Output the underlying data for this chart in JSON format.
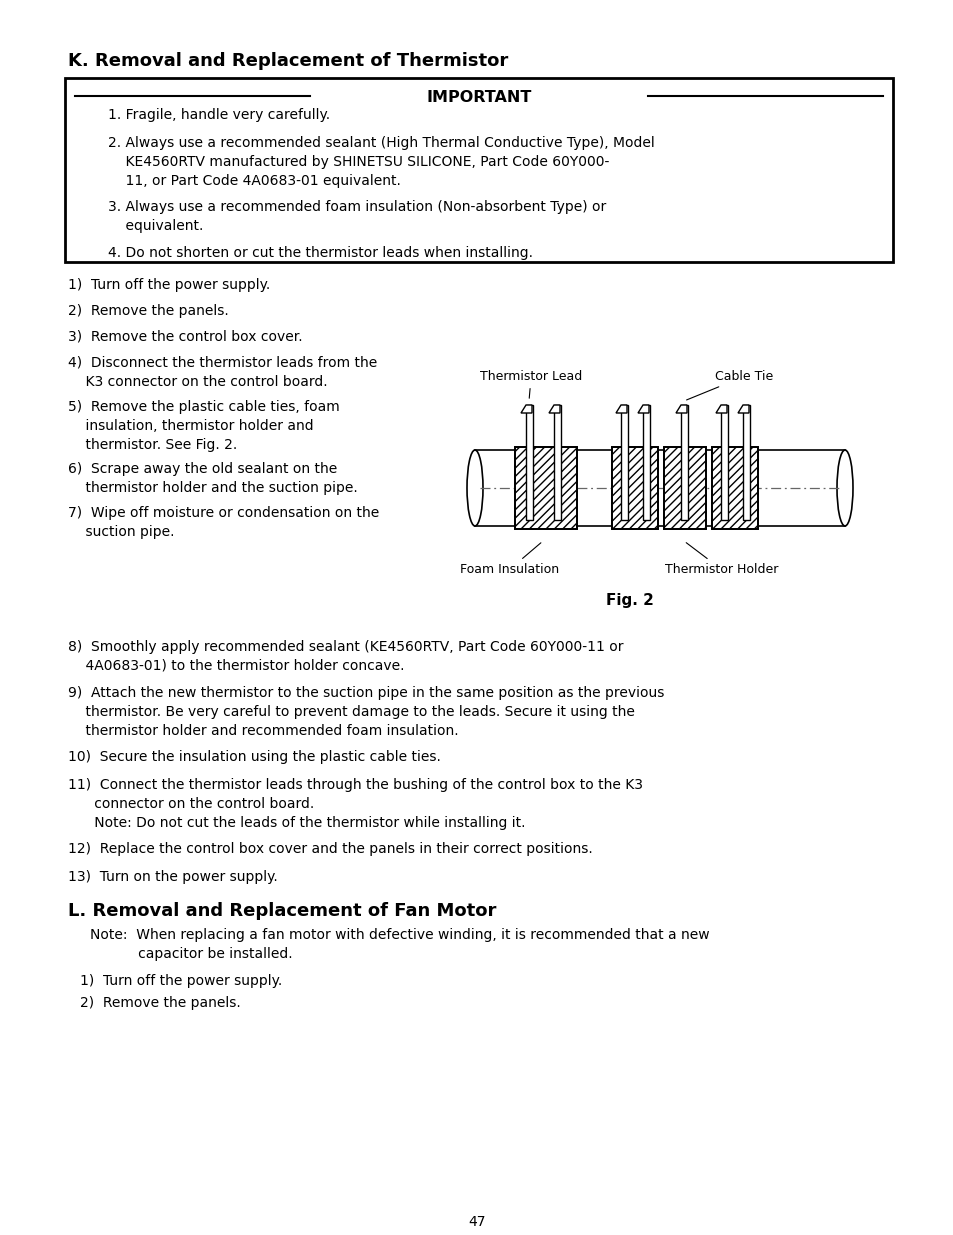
{
  "title_k": "K. Removal and Replacement of Thermistor",
  "important_title": "IMPORTANT",
  "important_items": [
    "1.  Fragile, handle very carefully.",
    "2.  Always use a recommended sealant (High Thermal Conductive Type), Model\n    KE4560RTV manufactured by SHINETSU SILICONE, Part Code 60Y000-\n    11, or Part Code 4A0683-01 equivalent.",
    "3.  Always use a recommended foam insulation (Non-absorbent Type) or\n    equivalent.",
    "4.  Do not shorten or cut the thermistor leads when installing."
  ],
  "steps_left": [
    "1)  Turn off the power supply.",
    "2)  Remove the panels.",
    "3)  Remove the control box cover.",
    "4)  Disconnect the thermistor leads from the\n    K3 connector on the control board.",
    "5)  Remove the plastic cable ties, foam\n    insulation, thermistor holder and\n    thermistor. See Fig. 2.",
    "6)  Scrape away the old sealant on the\n    thermistor holder and the suction pipe.",
    "7)  Wipe off moisture or condensation on the\n    suction pipe."
  ],
  "steps_full": [
    "8)  Smoothly apply recommended sealant (KE4560RTV, Part Code 60Y000-11 or\n    4A0683-01) to the thermistor holder concave.",
    "9)  Attach the new thermistor to the suction pipe in the same position as the previous\n    thermistor. Be very careful to prevent damage to the leads. Secure it using the\n    thermistor holder and recommended foam insulation.",
    "10)  Secure the insulation using the plastic cable ties.",
    "11)  Connect the thermistor leads through the bushing of the control box to the K3\n      connector on the control board.\n      Note: Do not cut the leads of the thermistor while installing it.",
    "12)  Replace the control box cover and the panels in their correct positions.",
    "13)  Turn on the power supply."
  ],
  "title_l": "L. Removal and Replacement of Fan Motor",
  "note_l": "Note:  When replacing a fan motor with defective winding, it is recommended that a new\n           capacitor be installed.",
  "steps_l": [
    "1)  Turn off the power supply.",
    "2)  Remove the panels."
  ],
  "page_number": "47",
  "fig_caption": "Fig. 2",
  "fig_label_thermistor_lead": "Thermistor Lead",
  "fig_label_cable_tie": "Cable Tie",
  "fig_label_foam": "Foam Insulation",
  "fig_label_thermistor_holder": "Thermistor Holder",
  "bg_color": "#ffffff",
  "text_color": "#000000"
}
